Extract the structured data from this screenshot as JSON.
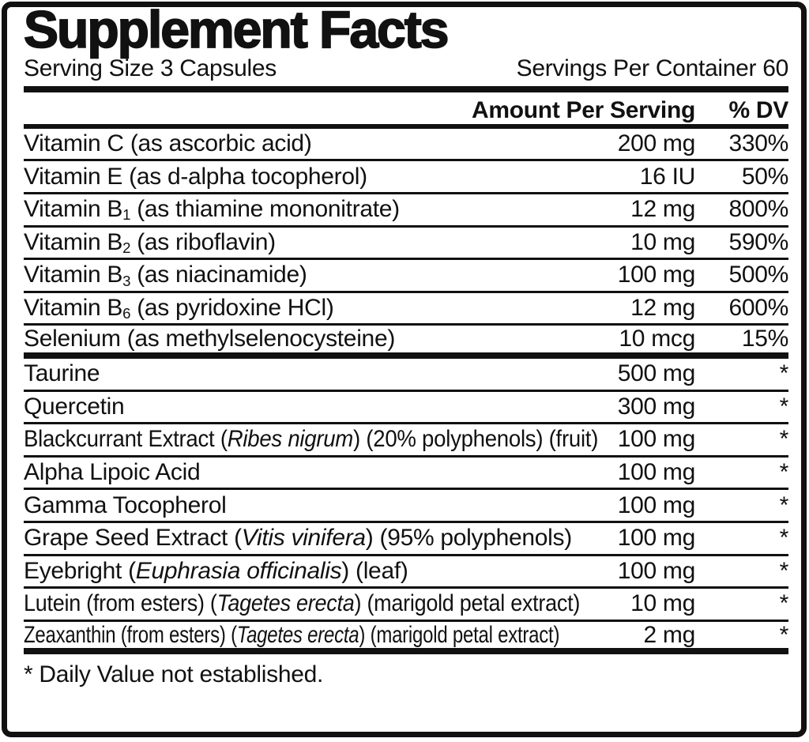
{
  "label": {
    "title": "Supplement Facts",
    "serving_size": "Serving Size 3 Capsules",
    "servings_per_container": "Servings Per Container 60",
    "columns": {
      "amount": "Amount Per Serving",
      "dv": "% DV"
    },
    "rows": [
      {
        "name_parts": [
          {
            "t": "Vitamin C (as ascorbic acid)"
          }
        ],
        "amount": "200 mg",
        "dv": "330%"
      },
      {
        "name_parts": [
          {
            "t": "Vitamin E (as d-alpha tocopherol)"
          }
        ],
        "amount": "16 IU",
        "dv": "50%"
      },
      {
        "name_parts": [
          {
            "t": "Vitamin B"
          },
          {
            "t": "1",
            "sub": true
          },
          {
            "t": " (as thiamine mononitrate)"
          }
        ],
        "amount": "12 mg",
        "dv": "800%"
      },
      {
        "name_parts": [
          {
            "t": "Vitamin B"
          },
          {
            "t": "2",
            "sub": true
          },
          {
            "t": " (as riboflavin)"
          }
        ],
        "amount": "10 mg",
        "dv": "590%"
      },
      {
        "name_parts": [
          {
            "t": "Vitamin B"
          },
          {
            "t": "3",
            "sub": true
          },
          {
            "t": " (as niacinamide)"
          }
        ],
        "amount": "100 mg",
        "dv": "500%"
      },
      {
        "name_parts": [
          {
            "t": "Vitamin B"
          },
          {
            "t": "6",
            "sub": true
          },
          {
            "t": " (as pyridoxine HCl)"
          }
        ],
        "amount": "12 mg",
        "dv": "600%"
      },
      {
        "name_parts": [
          {
            "t": "Selenium (as methylselenocysteine)"
          }
        ],
        "amount": "10 mcg",
        "dv": "15%",
        "thick_divider": true
      },
      {
        "name_parts": [
          {
            "t": "Taurine"
          }
        ],
        "amount": "500 mg",
        "dv": "*"
      },
      {
        "name_parts": [
          {
            "t": "Quercetin"
          }
        ],
        "amount": "300 mg",
        "dv": "*"
      },
      {
        "name_parts": [
          {
            "t": "Blackcurrant Extract ("
          },
          {
            "t": "Ribes nigrum",
            "italic": true
          },
          {
            "t": ") (20% polyphenols) (fruit)"
          }
        ],
        "amount": "100 mg",
        "dv": "*",
        "fit": 0.92
      },
      {
        "name_parts": [
          {
            "t": "Alpha Lipoic Acid"
          }
        ],
        "amount": "100 mg",
        "dv": "*"
      },
      {
        "name_parts": [
          {
            "t": "Gamma Tocopherol"
          }
        ],
        "amount": "100 mg",
        "dv": "*"
      },
      {
        "name_parts": [
          {
            "t": "Grape Seed Extract ("
          },
          {
            "t": "Vitis vinifera",
            "italic": true
          },
          {
            "t": ") (95% polyphenols)"
          }
        ],
        "amount": "100 mg",
        "dv": "*"
      },
      {
        "name_parts": [
          {
            "t": "Eyebright ("
          },
          {
            "t": "Euphrasia officinalis",
            "italic": true
          },
          {
            "t": ") (leaf)"
          }
        ],
        "amount": "100 mg",
        "dv": "*"
      },
      {
        "name_parts": [
          {
            "t": "Lutein (from esters) ("
          },
          {
            "t": "Tagetes erecta",
            "italic": true
          },
          {
            "t": ") (marigold petal extract)"
          }
        ],
        "amount": "10 mg",
        "dv": "*",
        "fit": 0.9
      },
      {
        "name_parts": [
          {
            "t": "Zeaxanthin (from esters) ("
          },
          {
            "t": "Tagetes erecta",
            "italic": true
          },
          {
            "t": ") (marigold petal extract)"
          }
        ],
        "amount": "2 mg",
        "dv": "*",
        "fit": 0.8,
        "thick_divider": true
      }
    ],
    "footnote": "* Daily Value not established.",
    "colors": {
      "ink": "#111111",
      "background": "#ffffff"
    }
  }
}
